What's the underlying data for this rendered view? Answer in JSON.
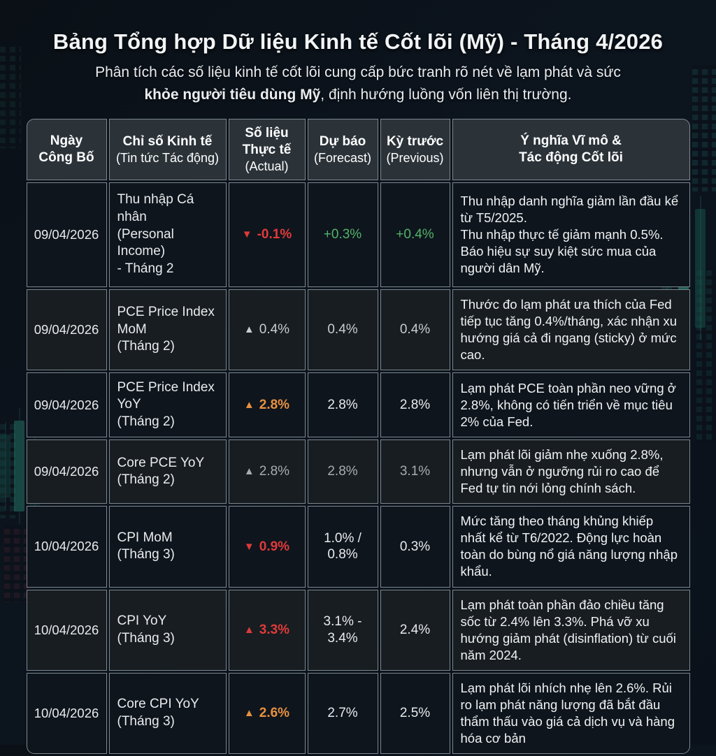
{
  "title": "Bảng Tổng hợp Dữ liệu Kinh tế Cốt lõi (Mỹ) - Tháng 4/2026",
  "subtitle": {
    "line1": "Phân tích các số liệu kinh tế cốt lõi cung cấp bức tranh rõ nét về lạm phát và sức",
    "line2_bold": "khỏe người tiêu dùng Mỹ",
    "line2_rest": ", định hướng luồng vốn liên thị trường."
  },
  "colors": {
    "red": "#e03a3a",
    "green": "#53b469",
    "orange": "#e8913f",
    "gray": "#a7acb1",
    "header_bg": "#2b3339",
    "cell_bg": "#0e151d",
    "border": "#7f878e"
  },
  "table": {
    "headers": [
      {
        "main": "Ngày\nCông Bố",
        "sub": ""
      },
      {
        "main": "Chỉ số Kinh tế",
        "sub": "(Tin tức Tác động)"
      },
      {
        "main": "Số liệu Thực tế",
        "sub": "(Actual)"
      },
      {
        "main": "Dự báo",
        "sub": "(Forecast)"
      },
      {
        "main": "Kỳ trước",
        "sub": "(Previous)"
      },
      {
        "main": "Ý nghĩa Vĩ mô &\nTác động Cốt lõi",
        "sub": ""
      }
    ],
    "rows": [
      {
        "date": "09/04/2026",
        "indicator": "Thu nhập Cá nhân\n(Personal Income)\n- Tháng 2",
        "actual": {
          "arrow": "▼",
          "value": "-0.1%",
          "class": "red",
          "bold": true
        },
        "forecast": {
          "value": "+0.3%",
          "class": "green"
        },
        "previous": {
          "value": "+0.4%",
          "class": "green"
        },
        "note": "Thu nhập danh nghĩa giảm lần đầu kể từ T5/2025.\nThu nhập thực tế giảm mạnh 0.5%.\nBáo hiệu sự suy kiệt sức mua của người dân Mỹ.",
        "height": 150
      },
      {
        "date": "09/04/2026",
        "indicator": "PCE Price Index MoM\n(Tháng 2)",
        "actual": {
          "arrow": "▲",
          "value": "0.4%",
          "class": "light",
          "bold": false
        },
        "forecast": {
          "value": "0.4%",
          "class": "light"
        },
        "previous": {
          "value": "0.4%",
          "class": "light"
        },
        "note": "Thước đo lạm phát ưa thích của Fed tiếp tục tăng 0.4%/tháng, xác nhận xu hướng giá cả đi ngang (sticky) ở mức cao.",
        "height": 90
      },
      {
        "date": "09/04/2026",
        "indicator": "PCE Price Index YoY\n(Tháng 2)",
        "actual": {
          "arrow": "▲",
          "value": "2.8%",
          "class": "orange",
          "bold": true
        },
        "forecast": {
          "value": "2.8%",
          "class": "white"
        },
        "previous": {
          "value": "2.8%",
          "class": "white"
        },
        "note": "Lạm phát PCE toàn phần neo vững ở 2.8%, không có tiến triển về mục tiêu 2% của Fed.",
        "height": 93
      },
      {
        "date": "09/04/2026",
        "indicator": "Core PCE YoY\n(Tháng 2)",
        "actual": {
          "arrow": "▲",
          "value": "2.8%",
          "class": "gray",
          "bold": false
        },
        "forecast": {
          "value": "2.8%",
          "class": "gray"
        },
        "previous": {
          "value": "3.1%",
          "class": "gray"
        },
        "note": "Lạm phát lõi giảm nhẹ xuống 2.8%, nhưng vẫn ở ngưỡng rủi ro cao để Fed tự tin nới lỏng chính sách.",
        "height": 88
      },
      {
        "date": "10/04/2026",
        "indicator": "CPI MoM\n(Tháng 3)",
        "actual": {
          "arrow": "▼",
          "value": "0.9%",
          "class": "red",
          "bold": true
        },
        "forecast": {
          "value": "1.0% /\n0.8%",
          "class": "white"
        },
        "previous": {
          "value": "0.3%",
          "class": "white"
        },
        "note": "Mức tăng theo tháng khủng khiếp nhất kể từ T6/2022. Động lực hoàn toàn do bùng nổ giá năng lượng nhập khẩu.",
        "height": 89
      },
      {
        "date": "10/04/2026",
        "indicator": "CPI YoY\n(Tháng 3)",
        "actual": {
          "arrow": "▲",
          "value": "3.3%",
          "class": "red",
          "bold": true
        },
        "forecast": {
          "value": "3.1% -\n3.4%",
          "class": "white"
        },
        "previous": {
          "value": "2.4%",
          "class": "white"
        },
        "note": "Lạm phát toàn phần đảo chiều tăng sốc từ 2.4% lên 3.3%. Phá vỡ xu hướng giảm phát (disinflation) từ cuối năm 2024.",
        "height": 88
      },
      {
        "date": "10/04/2026",
        "indicator": "Core CPI YoY\n(Tháng 3)",
        "actual": {
          "arrow": "▲",
          "value": "2.6%",
          "class": "orange",
          "bold": true
        },
        "forecast": {
          "value": "2.7%",
          "class": "white"
        },
        "previous": {
          "value": "2.5%",
          "class": "white"
        },
        "note": "Lạm phát lõi nhích nhẹ lên 2.6%. Rủi ro lạm phát năng lượng đã bắt đầu thẩm thấu vào giá cả dịch vụ và hàng hóa cơ bản",
        "height": 90
      }
    ]
  }
}
